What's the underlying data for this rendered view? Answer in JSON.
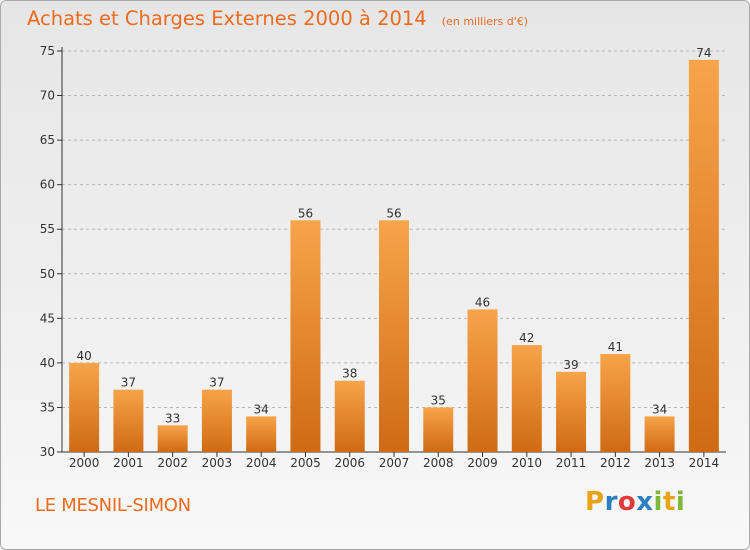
{
  "header": {
    "title": "Achats et Charges Externes 2000 à 2014",
    "subtitle": "(en milliers d'€)"
  },
  "footer": {
    "commune": "LE MESNIL-SIMON",
    "brand_letters": [
      "P",
      "r",
      "o",
      "x",
      "i",
      "t",
      "i"
    ],
    "brand_colors": [
      "#e8a316",
      "#2a7fc1",
      "#e23a3a",
      "#2a7fc1",
      "#7cb83a",
      "#e8a316",
      "#7cb83a"
    ]
  },
  "colors": {
    "bar_light": "#f7a44a",
    "bar_dark": "#d06a14",
    "title": "#ee6a1e",
    "axis": "#333333",
    "grid": "#b8b8b8"
  },
  "chart_data": {
    "type": "bar",
    "title": "Achats et Charges Externes 2000 à 2014",
    "subtitle": "(en milliers d'€)",
    "categories": [
      "2000",
      "2001",
      "2002",
      "2003",
      "2004",
      "2005",
      "2006",
      "2007",
      "2008",
      "2009",
      "2010",
      "2011",
      "2012",
      "2013",
      "2014"
    ],
    "values": [
      40,
      37,
      33,
      37,
      34,
      56,
      38,
      56,
      35,
      46,
      42,
      39,
      41,
      34,
      74
    ],
    "ylim": [
      30,
      75
    ],
    "yticks": [
      30,
      35,
      40,
      45,
      50,
      55,
      60,
      65,
      70,
      75
    ],
    "grid": "horizontal dashed",
    "data_labels": true
  }
}
